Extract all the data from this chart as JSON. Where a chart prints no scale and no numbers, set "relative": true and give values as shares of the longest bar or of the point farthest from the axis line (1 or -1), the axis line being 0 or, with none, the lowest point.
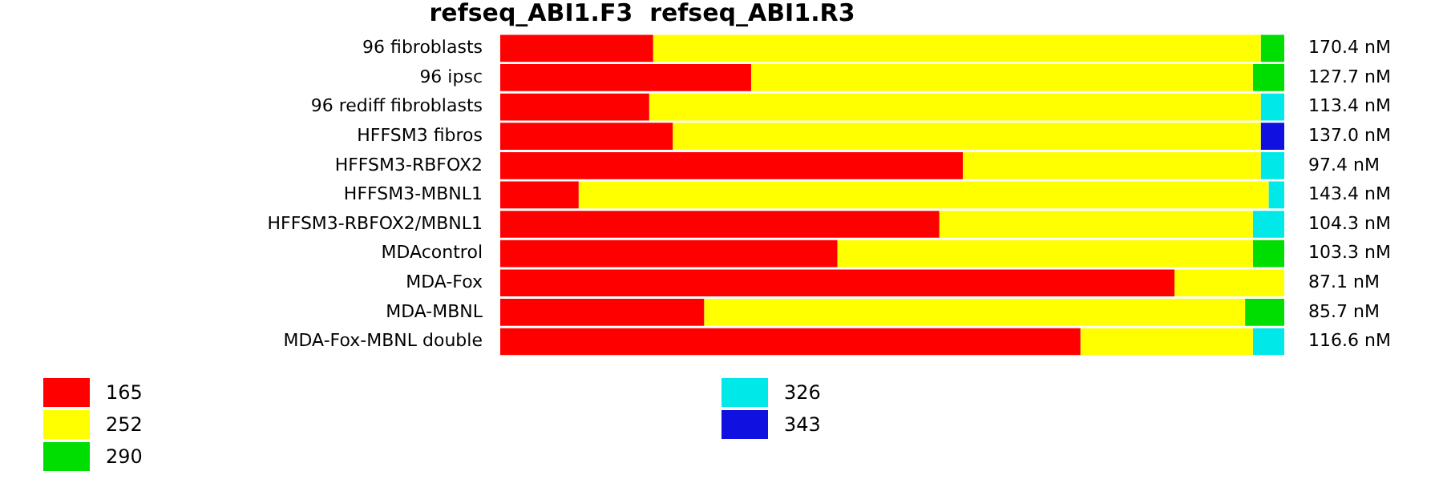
{
  "chart_data": {
    "type": "bar",
    "orientation": "horizontal",
    "stacked": true,
    "relative": true,
    "title": "refseq_ABI1.F3  refseq_ABI1.R3",
    "categories": [
      "96 fibroblasts",
      "96 ipsc",
      "96 rediff fibroblasts",
      "HFFSM3 fibros",
      "HFFSM3-RBFOX2",
      "HFFSM3-MBNL1",
      "HFFSM3-RBFOX2/MBNL1",
      "MDAcontrol",
      "MDA-Fox",
      "MDA-MBNL",
      "MDA-Fox-MBNL double"
    ],
    "series": [
      {
        "name": "165",
        "color": "#ff0000",
        "values": [
          0.195,
          0.32,
          0.19,
          0.22,
          0.59,
          0.1,
          0.56,
          0.43,
          0.86,
          0.26,
          0.74
        ]
      },
      {
        "name": "252",
        "color": "#ffff00",
        "values": [
          0.775,
          0.64,
          0.78,
          0.75,
          0.38,
          0.88,
          0.4,
          0.53,
          0.14,
          0.69,
          0.22
        ]
      },
      {
        "name": "290",
        "color": "#00dd00",
        "values": [
          0.03,
          0.04,
          null,
          null,
          null,
          null,
          null,
          0.04,
          null,
          0.05,
          null
        ]
      },
      {
        "name": "326",
        "color": "#00e8e8",
        "values": [
          null,
          null,
          0.03,
          null,
          0.03,
          0.02,
          0.04,
          null,
          null,
          null,
          0.04
        ]
      },
      {
        "name": "343",
        "color": "#1010e0",
        "values": [
          null,
          null,
          null,
          0.03,
          null,
          null,
          null,
          null,
          null,
          null,
          null
        ]
      }
    ],
    "annotations": [
      "170.4 nM",
      "127.7 nM",
      "113.4 nM",
      "137.0 nM",
      "97.4 nM",
      "143.4 nM",
      "104.3 nM",
      "103.3 nM",
      "87.1 nM",
      "85.7 nM",
      "116.6 nM"
    ],
    "grid": false,
    "legend": "bottom"
  }
}
